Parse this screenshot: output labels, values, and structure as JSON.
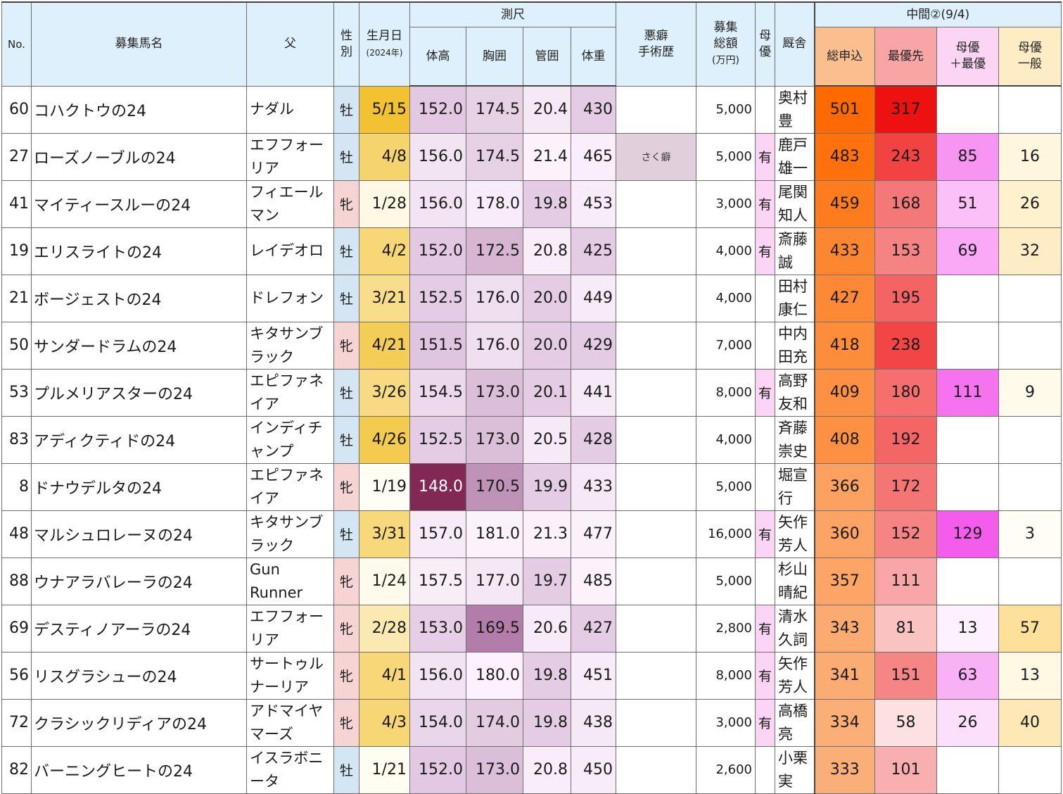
{
  "headers": {
    "no": "No.",
    "name": "募集馬名",
    "sire": "父",
    "sex": [
      "性",
      "別"
    ],
    "birth": "生月日",
    "birth_sub": "(2024年)",
    "measure": "測尺",
    "height": "体高",
    "chest": "胸囲",
    "cannon": "管囲",
    "weight": "体重",
    "vice": [
      "悪癖",
      "手術歴"
    ],
    "total": [
      "募集",
      "総額",
      "(万円)"
    ],
    "dam_pref": [
      "母",
      "優"
    ],
    "stable": "厩舎",
    "interim": "中間②(9/4)",
    "apply_total": "総申込",
    "priority": "最優先",
    "dam_priority": [
      "母優",
      "＋最優"
    ],
    "dam_general": [
      "母優",
      "一般"
    ]
  },
  "colors": {
    "header_bg": "#ddf0fb",
    "male": "#d4e6f4",
    "female": "#f6d4d4",
    "dam_yes": "#fbd5f3"
  },
  "rows": [
    {
      "no": "60",
      "name": "コハクトウの24",
      "sire": "ナダル",
      "sex": "牡",
      "birth": "5/15",
      "height": "152.0",
      "chest": "174.5",
      "cannon": "20.4",
      "weight": "430",
      "vice": "",
      "total": "5,000",
      "dam": "",
      "stable": "奥村豊",
      "apply": "501",
      "prio": "317",
      "dp": "",
      "dg": ""
    },
    {
      "no": "27",
      "name": "ローズノーブルの24",
      "sire": "エフフォーリア",
      "sex": "牡",
      "birth": "4/8",
      "height": "156.0",
      "chest": "174.5",
      "cannon": "21.4",
      "weight": "465",
      "vice": "さく癖",
      "total": "5,000",
      "dam": "有",
      "stable": "鹿戸雄一",
      "apply": "483",
      "prio": "243",
      "dp": "85",
      "dg": "16"
    },
    {
      "no": "41",
      "name": "マイティースルーの24",
      "sire": "フィエールマン",
      "sex": "牝",
      "birth": "1/28",
      "height": "156.0",
      "chest": "178.0",
      "cannon": "19.8",
      "weight": "453",
      "vice": "",
      "total": "3,000",
      "dam": "有",
      "stable": "尾関知人",
      "apply": "459",
      "prio": "168",
      "dp": "51",
      "dg": "26"
    },
    {
      "no": "19",
      "name": "エリスライトの24",
      "sire": "レイデオロ",
      "sex": "牡",
      "birth": "4/2",
      "height": "152.0",
      "chest": "172.5",
      "cannon": "20.8",
      "weight": "425",
      "vice": "",
      "total": "4,000",
      "dam": "有",
      "stable": "斎藤誠",
      "apply": "433",
      "prio": "153",
      "dp": "69",
      "dg": "32"
    },
    {
      "no": "21",
      "name": "ボージェストの24",
      "sire": "ドレフォン",
      "sex": "牡",
      "birth": "3/21",
      "height": "152.5",
      "chest": "176.0",
      "cannon": "20.0",
      "weight": "449",
      "vice": "",
      "total": "4,000",
      "dam": "",
      "stable": "田村康仁",
      "apply": "427",
      "prio": "195",
      "dp": "",
      "dg": ""
    },
    {
      "no": "50",
      "name": "サンダードラムの24",
      "sire": "キタサンブラック",
      "sex": "牝",
      "birth": "4/21",
      "height": "151.5",
      "chest": "176.0",
      "cannon": "20.0",
      "weight": "429",
      "vice": "",
      "total": "7,000",
      "dam": "",
      "stable": "中内田充",
      "apply": "418",
      "prio": "238",
      "dp": "",
      "dg": ""
    },
    {
      "no": "53",
      "name": "プルメリアスターの24",
      "sire": "エピファネイア",
      "sex": "牡",
      "birth": "3/26",
      "height": "154.5",
      "chest": "173.0",
      "cannon": "20.1",
      "weight": "441",
      "vice": "",
      "total": "8,000",
      "dam": "有",
      "stable": "高野友和",
      "apply": "409",
      "prio": "180",
      "dp": "111",
      "dg": "9"
    },
    {
      "no": "83",
      "name": "アディクティドの24",
      "sire": "インディチャンプ",
      "sex": "牡",
      "birth": "4/26",
      "height": "152.5",
      "chest": "173.0",
      "cannon": "20.5",
      "weight": "428",
      "vice": "",
      "total": "4,000",
      "dam": "",
      "stable": "斉藤崇史",
      "apply": "408",
      "prio": "192",
      "dp": "",
      "dg": ""
    },
    {
      "no": "8",
      "name": "ドナウデルタの24",
      "sire": "エピファネイア",
      "sex": "牝",
      "birth": "1/19",
      "height": "148.0",
      "chest": "170.5",
      "cannon": "19.9",
      "weight": "433",
      "vice": "",
      "total": "5,000",
      "dam": "",
      "stable": "堀宣行",
      "apply": "366",
      "prio": "172",
      "dp": "",
      "dg": ""
    },
    {
      "no": "48",
      "name": "マルシュロレーヌの24",
      "sire": "キタサンブラック",
      "sex": "牡",
      "birth": "3/31",
      "height": "157.0",
      "chest": "181.0",
      "cannon": "21.3",
      "weight": "477",
      "vice": "",
      "total": "16,000",
      "dam": "有",
      "stable": "矢作芳人",
      "apply": "360",
      "prio": "152",
      "dp": "129",
      "dg": "3"
    },
    {
      "no": "88",
      "name": "ウナアラバレーラの24",
      "sire": "Gun Runner",
      "sex": "牝",
      "birth": "1/24",
      "height": "157.5",
      "chest": "177.0",
      "cannon": "19.7",
      "weight": "485",
      "vice": "",
      "total": "5,000",
      "dam": "",
      "stable": "杉山晴紀",
      "apply": "357",
      "prio": "111",
      "dp": "",
      "dg": ""
    },
    {
      "no": "69",
      "name": "デスティノアーラの24",
      "sire": "エフフォーリア",
      "sex": "牝",
      "birth": "2/28",
      "height": "153.0",
      "chest": "169.5",
      "cannon": "20.6",
      "weight": "427",
      "vice": "",
      "total": "2,800",
      "dam": "有",
      "stable": "清水久詞",
      "apply": "343",
      "prio": "81",
      "dp": "13",
      "dg": "57"
    },
    {
      "no": "56",
      "name": "リスグラシューの24",
      "sire": "サートゥルナーリア",
      "sex": "牝",
      "birth": "4/1",
      "height": "156.0",
      "chest": "180.0",
      "cannon": "19.8",
      "weight": "451",
      "vice": "",
      "total": "8,000",
      "dam": "有",
      "stable": "矢作芳人",
      "apply": "341",
      "prio": "151",
      "dp": "63",
      "dg": "13"
    },
    {
      "no": "72",
      "name": "クラシックリディアの24",
      "sire": "アドマイヤマーズ",
      "sex": "牝",
      "birth": "4/3",
      "height": "154.0",
      "chest": "174.0",
      "cannon": "19.8",
      "weight": "438",
      "vice": "",
      "total": "3,000",
      "dam": "有",
      "stable": "高橋亮",
      "apply": "334",
      "prio": "58",
      "dp": "26",
      "dg": "40"
    },
    {
      "no": "82",
      "name": "バーニングヒートの24",
      "sire": "イスラボニータ",
      "sex": "牡",
      "birth": "1/21",
      "height": "152.0",
      "chest": "173.0",
      "cannon": "20.8",
      "weight": "450",
      "vice": "",
      "total": "2,600",
      "dam": "",
      "stable": "小栗実",
      "apply": "333",
      "prio": "101",
      "dp": "",
      "dg": ""
    }
  ]
}
